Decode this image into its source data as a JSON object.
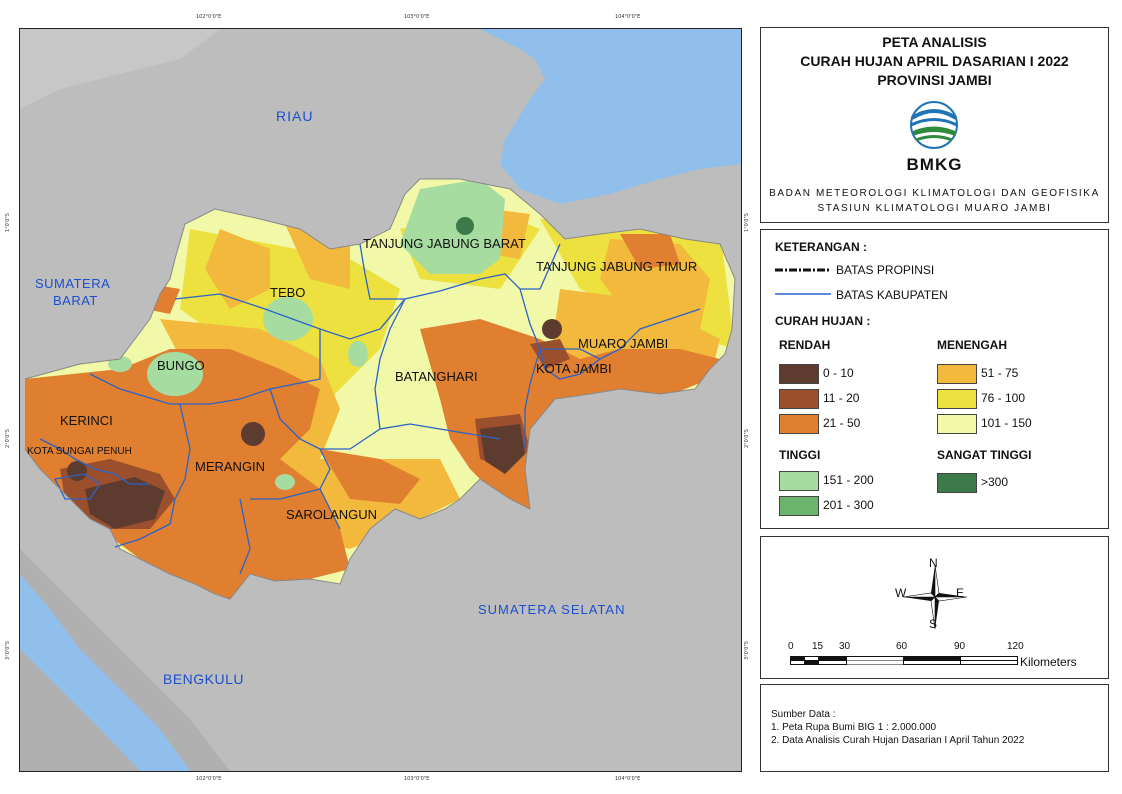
{
  "title": {
    "line1": "PETA ANALISIS",
    "line2": "CURAH HUJAN APRIL DASARIAN I 2022",
    "line3": "PROVINSI JAMBI"
  },
  "logo_text": "BMKG",
  "organization": {
    "line1": "BADAN METEOROLOGI KLIMATOLOGI DAN GEOFISIKA",
    "line2": "STASIUN KLIMATOLOGI MUARO JAMBI"
  },
  "coordinates": {
    "top": [
      "102°0'0\"E",
      "103°0'0\"E",
      "104°0'0\"E"
    ],
    "bottom": [
      "102°0'0\"E",
      "103°0'0\"E",
      "104°0'0\"E"
    ],
    "left": [
      "1°0'0\"S",
      "2°0'0\"S",
      "3°0'0\"S"
    ],
    "right": [
      "1°0'0\"S",
      "2°0'0\"S",
      "3°0'0\"S"
    ]
  },
  "map_labels": {
    "riau": "RIAU",
    "sumatera_barat_1": "SUMATERA",
    "sumatera_barat_2": "BARAT",
    "sumatera_selatan": "SUMATERA SELATAN",
    "bengkulu": "BENGKULU",
    "kerinci": "KERINCI",
    "kota_sungai_penuh": "KOTA SUNGAI PENUH",
    "bungo": "BUNGO",
    "tebo": "TEBO",
    "merangin": "MERANGIN",
    "sarolangun": "SAROLANGUN",
    "batanghari": "BATANGHARI",
    "tanjung_jabung_barat": "TANJUNG JABUNG BARAT",
    "tanjung_jabung_timur": "TANJUNG JABUNG TIMUR",
    "muaro_jambi": "MUARO JAMBI",
    "kota_jambi": "KOTA JAMBI"
  },
  "legend": {
    "heading": "KETERANGAN :",
    "batas_propinsi": "BATAS PROPINSI",
    "batas_kabupaten": "BATAS KABUPATEN",
    "curah_hujan": "CURAH HUJAN :",
    "groups": {
      "rendah": "RENDAH",
      "menengah": "MENENGAH",
      "tinggi": "TINGGI",
      "sangat_tinggi": "SANGAT TINGGI"
    },
    "classes": [
      {
        "label": "0 - 10",
        "color": "#5e3b2f"
      },
      {
        "label": "11 - 20",
        "color": "#9c4f2d"
      },
      {
        "label": "21 - 50",
        "color": "#e07f2f"
      },
      {
        "label": "51 - 75",
        "color": "#f2b93c"
      },
      {
        "label": "76 - 100",
        "color": "#ece13e"
      },
      {
        "label": "101 - 150",
        "color": "#f1f8a8"
      },
      {
        "label": "151 - 200",
        "color": "#a6dca0"
      },
      {
        "label": "201 - 300",
        "color": "#6cb46c"
      },
      {
        "label": ">300",
        "color": "#3c7a49"
      }
    ]
  },
  "compass": {
    "n": "N",
    "s": "S",
    "e": "E",
    "w": "W"
  },
  "scalebar": {
    "ticks": [
      "0",
      "15",
      "30",
      "60",
      "90",
      "120"
    ],
    "unit": "Kilometers"
  },
  "source": {
    "heading": "Sumber Data :",
    "line1": "1. Peta Rupa Bumi BIG 1 : 2.000.000",
    "line2": "2. Data Analisis Curah Hujan Dasarian I April Tahun 2022"
  },
  "colors": {
    "sea": "#8fbfea",
    "land": "#bdbdbd",
    "kab_border": "#2a63c9",
    "prov_border": "#111111"
  }
}
